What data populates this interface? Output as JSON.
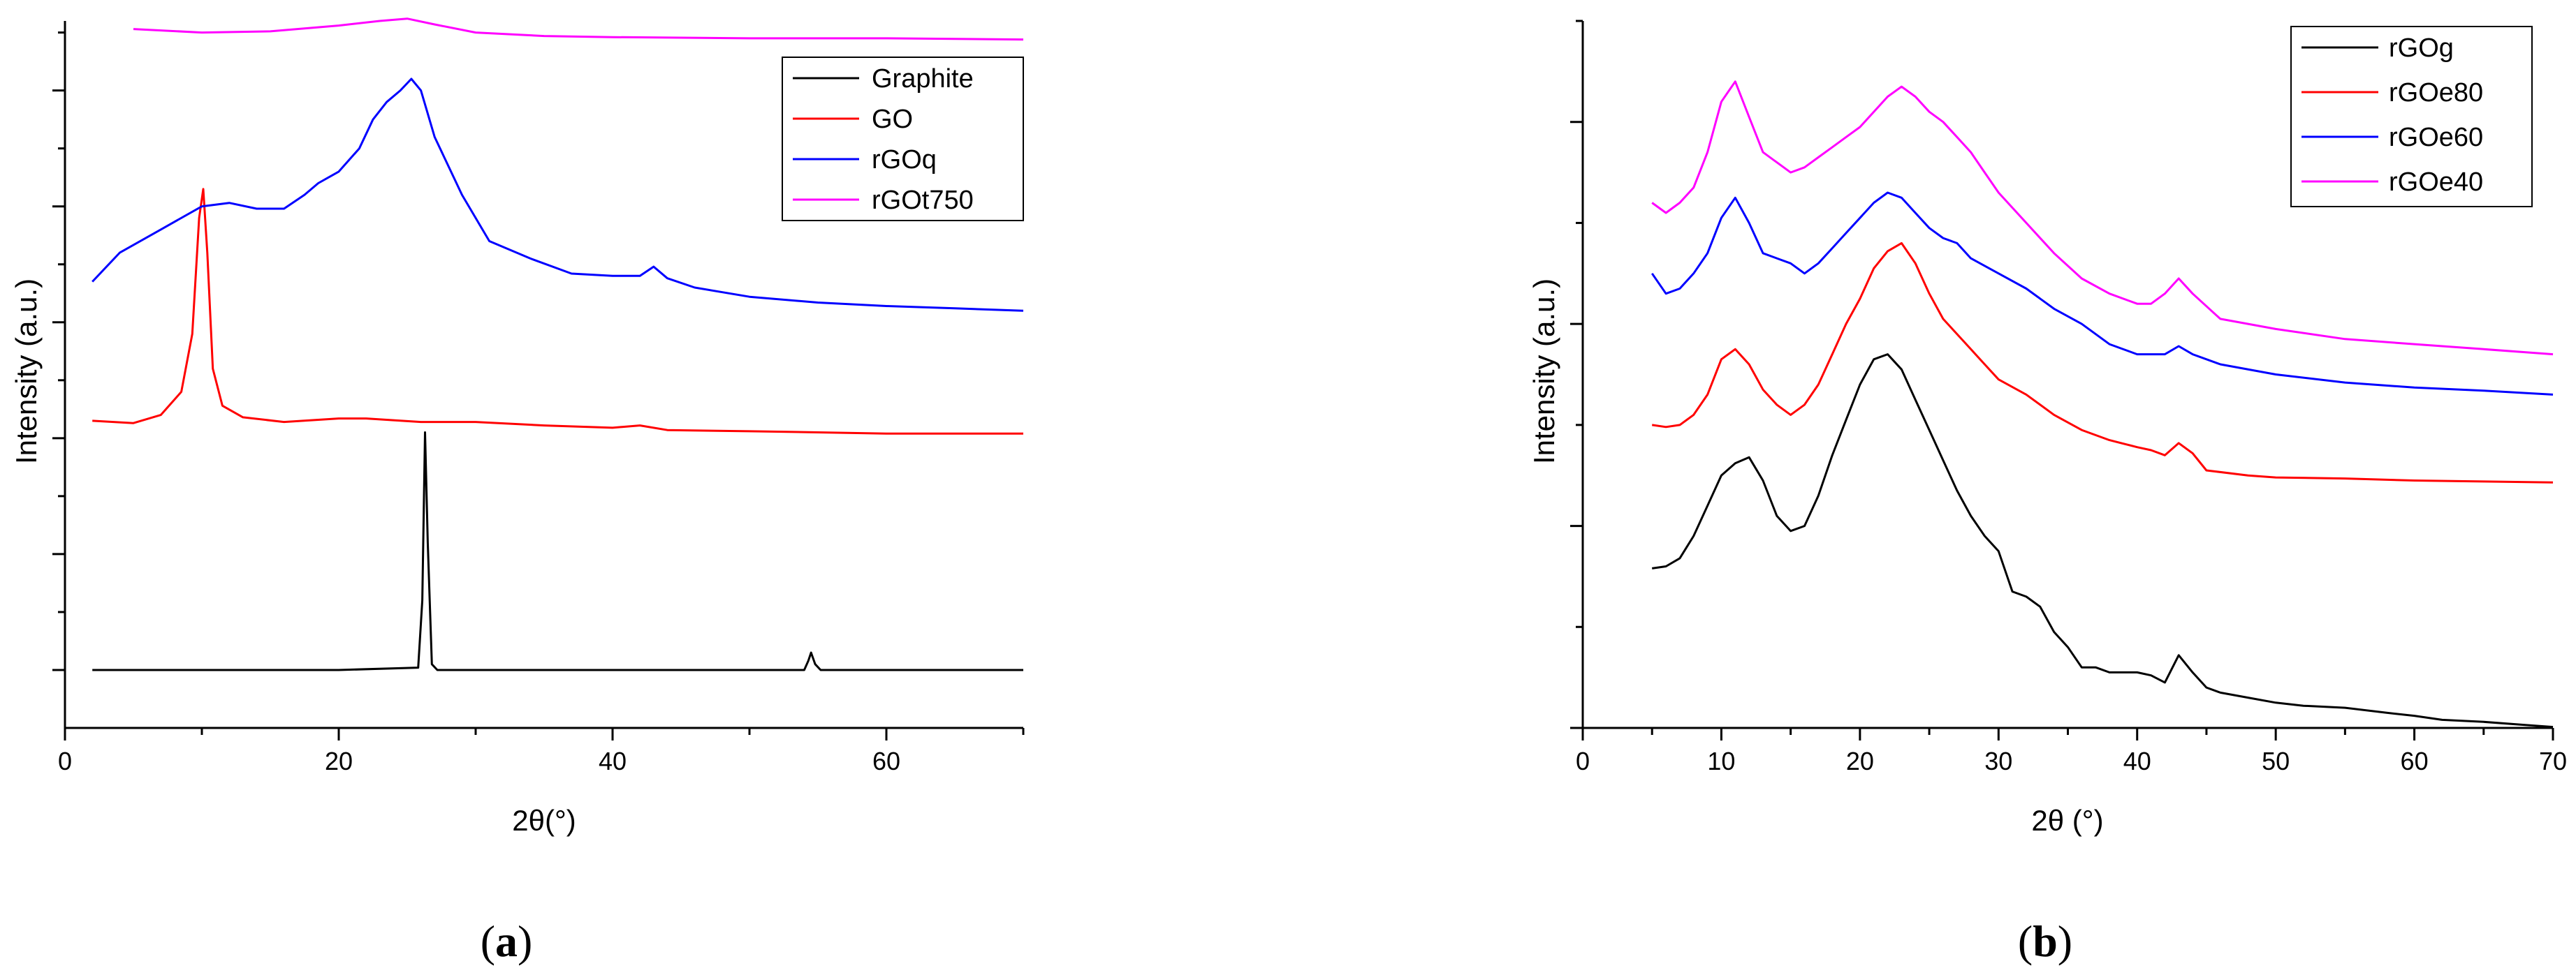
{
  "chart_data": [
    {
      "type": "line",
      "panel": "a",
      "caption_open": "(",
      "caption_letter": "a",
      "caption_close": ")",
      "title": "",
      "xlabel": "2θ(°)",
      "ylabel": "Intensity (a.u.)",
      "xlim": [
        0,
        70
      ],
      "ylim": [
        -0.5,
        5.6
      ],
      "x_ticks": [
        0,
        20,
        40,
        60
      ],
      "y_ticks_major": [
        0,
        1,
        2,
        3,
        4,
        5
      ],
      "legend_position": "top-right",
      "series": [
        {
          "name": "Graphite",
          "color": "#000000",
          "x": [
            2,
            20,
            25.8,
            26.1,
            26.3,
            26.5,
            26.8,
            27.2,
            54,
            54.3,
            54.5,
            54.8,
            55.2,
            70
          ],
          "y": [
            0,
            0,
            0.02,
            0.6,
            2.05,
            1.1,
            0.05,
            0,
            0,
            0.08,
            0.15,
            0.05,
            0,
            0
          ]
        },
        {
          "name": "GO",
          "color": "#ff0000",
          "x": [
            2,
            5,
            7,
            8.5,
            9.3,
            9.8,
            10.1,
            10.4,
            10.8,
            11.5,
            13,
            16,
            20,
            22,
            26,
            30,
            35,
            40,
            42,
            44,
            50,
            55,
            60,
            65,
            70
          ],
          "y": [
            2.15,
            2.13,
            2.2,
            2.4,
            2.9,
            3.9,
            4.15,
            3.6,
            2.6,
            2.28,
            2.18,
            2.14,
            2.17,
            2.17,
            2.14,
            2.14,
            2.11,
            2.09,
            2.11,
            2.07,
            2.06,
            2.05,
            2.04,
            2.04,
            2.04
          ]
        },
        {
          "name": "rGOq",
          "color": "#0000ff",
          "x": [
            2,
            4,
            7,
            10,
            12,
            14,
            16,
            17.5,
            18.5,
            20,
            21.5,
            22.5,
            23.5,
            24.5,
            25.3,
            26,
            27,
            29,
            31,
            34,
            37,
            40,
            42,
            43,
            44,
            46,
            50,
            55,
            60,
            65,
            70
          ],
          "y": [
            3.35,
            3.6,
            3.8,
            4.0,
            4.03,
            3.98,
            3.98,
            4.1,
            4.2,
            4.3,
            4.5,
            4.75,
            4.9,
            5.0,
            5.1,
            5.0,
            4.6,
            4.1,
            3.7,
            3.55,
            3.42,
            3.4,
            3.4,
            3.48,
            3.38,
            3.3,
            3.22,
            3.17,
            3.14,
            3.12,
            3.1
          ]
        },
        {
          "name": "rGOt750",
          "color": "#ff00ff",
          "x": [
            5,
            10,
            15,
            20,
            23,
            25,
            27,
            30,
            35,
            40,
            50,
            60,
            70
          ],
          "y": [
            5.53,
            5.5,
            5.51,
            5.56,
            5.6,
            5.62,
            5.57,
            5.5,
            5.47,
            5.46,
            5.45,
            5.45,
            5.44
          ]
        }
      ]
    },
    {
      "type": "line",
      "panel": "b",
      "caption_open": "(",
      "caption_letter": "b",
      "caption_close": ")",
      "title": "",
      "xlabel": "2θ (°)",
      "ylabel": "Intensity (a.u.)",
      "xlim": [
        0,
        70
      ],
      "ylim": [
        0,
        7
      ],
      "x_ticks": [
        0,
        10,
        20,
        30,
        40,
        50,
        60,
        70
      ],
      "y_ticks_major": [
        0,
        2,
        4,
        6
      ],
      "legend_position": "top-right",
      "series": [
        {
          "name": "rGOg",
          "color": "#000000",
          "x": [
            5,
            6,
            7,
            8,
            9,
            10,
            11,
            12,
            13,
            14,
            15,
            16,
            17,
            18,
            19,
            20,
            21,
            22,
            23,
            24,
            25,
            26,
            27,
            28,
            29,
            30,
            31,
            32,
            33,
            34,
            35,
            36,
            37,
            38,
            39,
            40,
            41,
            42,
            43,
            44,
            45,
            46,
            48,
            50,
            52,
            55,
            58,
            60,
            62,
            65,
            68,
            70
          ],
          "y": [
            1.58,
            1.6,
            1.68,
            1.9,
            2.2,
            2.5,
            2.62,
            2.68,
            2.45,
            2.1,
            1.95,
            2.0,
            2.3,
            2.7,
            3.05,
            3.4,
            3.65,
            3.7,
            3.55,
            3.25,
            2.95,
            2.65,
            2.35,
            2.1,
            1.9,
            1.75,
            1.35,
            1.3,
            1.2,
            0.95,
            0.8,
            0.6,
            0.6,
            0.55,
            0.55,
            0.55,
            0.52,
            0.45,
            0.72,
            0.55,
            0.4,
            0.35,
            0.3,
            0.25,
            0.22,
            0.2,
            0.15,
            0.12,
            0.08,
            0.06,
            0.03,
            0.01
          ]
        },
        {
          "name": "rGOe80",
          "color": "#ff0000",
          "x": [
            5,
            6,
            7,
            8,
            9,
            10,
            11,
            12,
            13,
            14,
            15,
            16,
            17,
            18,
            19,
            20,
            21,
            22,
            23,
            24,
            25,
            26,
            27,
            28,
            29,
            30,
            32,
            34,
            36,
            38,
            40,
            41,
            42,
            43,
            44,
            45,
            48,
            50,
            55,
            60,
            65,
            70
          ],
          "y": [
            3.0,
            2.98,
            3.0,
            3.1,
            3.3,
            3.65,
            3.75,
            3.6,
            3.35,
            3.2,
            3.1,
            3.2,
            3.4,
            3.7,
            4.0,
            4.25,
            4.55,
            4.72,
            4.8,
            4.6,
            4.3,
            4.05,
            3.9,
            3.75,
            3.6,
            3.45,
            3.3,
            3.1,
            2.95,
            2.85,
            2.78,
            2.75,
            2.7,
            2.82,
            2.72,
            2.55,
            2.5,
            2.48,
            2.47,
            2.45,
            2.44,
            2.43
          ]
        },
        {
          "name": "rGOe60",
          "color": "#0000ff",
          "x": [
            5,
            6,
            7,
            8,
            9,
            10,
            11,
            12,
            13,
            14,
            15,
            16,
            17,
            18,
            19,
            20,
            21,
            22,
            23,
            24,
            25,
            26,
            27,
            28,
            30,
            32,
            34,
            36,
            38,
            40,
            42,
            43,
            44,
            46,
            50,
            55,
            60,
            65,
            70
          ],
          "y": [
            4.5,
            4.3,
            4.35,
            4.5,
            4.7,
            5.05,
            5.25,
            5.0,
            4.7,
            4.65,
            4.6,
            4.5,
            4.6,
            4.75,
            4.9,
            5.05,
            5.2,
            5.3,
            5.25,
            5.1,
            4.95,
            4.85,
            4.8,
            4.65,
            4.5,
            4.35,
            4.15,
            4.0,
            3.8,
            3.7,
            3.7,
            3.78,
            3.7,
            3.6,
            3.5,
            3.42,
            3.37,
            3.34,
            3.3
          ]
        },
        {
          "name": "rGOe40",
          "color": "#ff00ff",
          "x": [
            5,
            6,
            7,
            8,
            9,
            10,
            11,
            12,
            13,
            14,
            15,
            16,
            17,
            18,
            19,
            20,
            21,
            22,
            23,
            24,
            25,
            26,
            27,
            28,
            29,
            30,
            32,
            34,
            36,
            38,
            40,
            41,
            42,
            43,
            44,
            46,
            48,
            50,
            55,
            60,
            65,
            70
          ],
          "y": [
            5.2,
            5.1,
            5.2,
            5.35,
            5.7,
            6.2,
            6.4,
            6.05,
            5.7,
            5.6,
            5.5,
            5.55,
            5.65,
            5.75,
            5.85,
            5.95,
            6.1,
            6.25,
            6.35,
            6.25,
            6.1,
            6.0,
            5.85,
            5.7,
            5.5,
            5.3,
            5.0,
            4.7,
            4.45,
            4.3,
            4.2,
            4.2,
            4.3,
            4.45,
            4.3,
            4.05,
            4.0,
            3.95,
            3.85,
            3.8,
            3.75,
            3.7
          ]
        }
      ]
    }
  ]
}
